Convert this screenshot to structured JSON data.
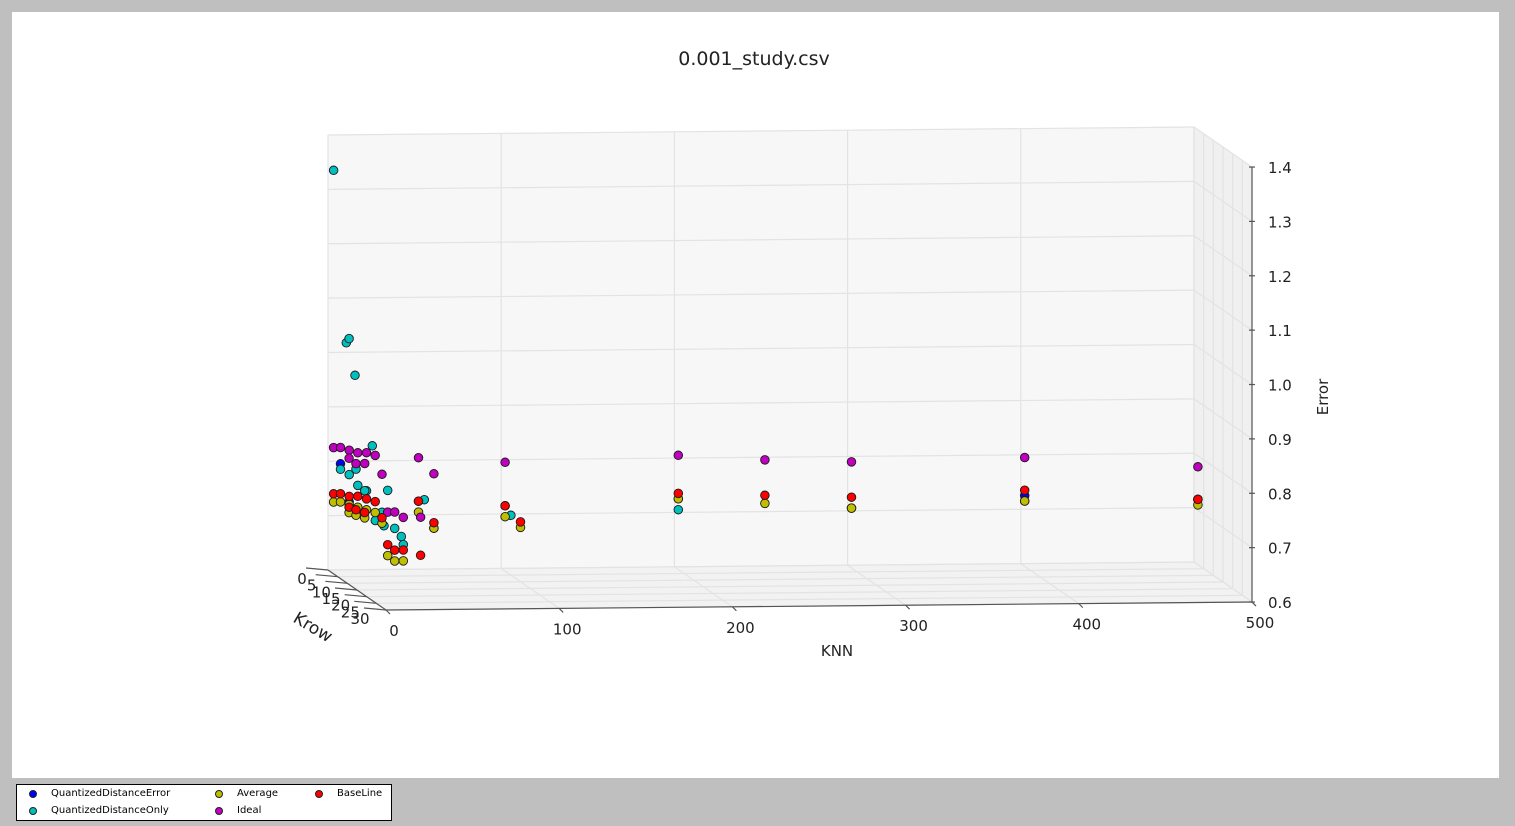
{
  "chart_data": {
    "type": "scatter",
    "title": "0.001_study.csv",
    "xlabel": "KNN",
    "ylabel": "Krow",
    "zlabel": "Error",
    "x_ticks": [
      "0",
      "100",
      "200",
      "300",
      "400",
      "500"
    ],
    "y_ticks": [
      "0",
      "5",
      "10",
      "15",
      "20",
      "25",
      "30"
    ],
    "z_ticks": [
      "0.6",
      "0.7",
      "0.8",
      "0.9",
      "1.0",
      "1.1",
      "1.2",
      "1.3",
      "1.4"
    ],
    "xlim": [
      0,
      500
    ],
    "ylim": [
      0,
      30
    ],
    "zlim": [
      0.6,
      1.4
    ],
    "grid": true,
    "legend_position": "bottom-left",
    "knn_values": [
      1,
      5,
      10,
      15,
      20,
      25,
      50,
      100,
      200,
      300,
      400,
      500
    ],
    "krow_values": [
      2,
      5,
      10,
      20,
      30
    ],
    "series": [
      {
        "name": "QuantizedDistanceError",
        "color": "#0000ff",
        "points": [
          [
            5,
            2,
            0.8
          ],
          [
            10,
            2,
            0.73
          ],
          [
            200,
            2,
            0.73
          ],
          [
            400,
            2,
            0.73
          ],
          [
            500,
            2,
            0.72
          ]
        ]
      },
      {
        "name": "QuantizedDistanceOnly",
        "color": "#00bfbf",
        "points": [
          [
            1,
            2,
            1.34
          ],
          [
            5,
            2,
            0.79
          ],
          [
            10,
            2,
            0.78
          ],
          [
            15,
            2,
            0.76
          ],
          [
            20,
            2,
            0.75
          ],
          [
            50,
            2,
            0.73
          ],
          [
            100,
            2,
            0.72
          ],
          [
            200,
            2,
            0.71
          ],
          [
            300,
            2,
            0.71
          ],
          [
            400,
            2,
            0.72
          ],
          [
            500,
            2,
            0.72
          ],
          [
            5,
            5,
            1.03
          ],
          [
            10,
            5,
            0.97
          ],
          [
            20,
            5,
            0.84
          ],
          [
            50,
            5,
            0.74
          ],
          [
            100,
            5,
            0.71
          ],
          [
            1,
            10,
            1.05
          ],
          [
            5,
            10,
            0.81
          ],
          [
            10,
            10,
            0.77
          ],
          [
            20,
            10,
            0.73
          ],
          [
            50,
            10,
            0.7
          ],
          [
            5,
            20,
            0.74
          ],
          [
            10,
            20,
            0.73
          ],
          [
            20,
            20,
            0.71
          ],
          [
            1,
            30,
            0.82
          ],
          [
            5,
            30,
            0.75
          ],
          [
            10,
            30,
            0.72
          ]
        ]
      },
      {
        "name": "Average",
        "color": "#bfbf00",
        "points": [
          [
            1,
            2,
            0.73
          ],
          [
            5,
            2,
            0.73
          ],
          [
            10,
            2,
            0.725
          ],
          [
            15,
            2,
            0.72
          ],
          [
            20,
            2,
            0.715
          ],
          [
            25,
            2,
            0.71
          ],
          [
            50,
            2,
            0.71
          ],
          [
            100,
            2,
            0.7
          ],
          [
            200,
            2,
            0.73
          ],
          [
            250,
            2,
            0.72
          ],
          [
            300,
            2,
            0.71
          ],
          [
            400,
            2,
            0.72
          ],
          [
            500,
            2,
            0.71
          ],
          [
            1,
            10,
            0.73
          ],
          [
            5,
            10,
            0.725
          ],
          [
            10,
            10,
            0.72
          ],
          [
            20,
            10,
            0.71
          ],
          [
            50,
            10,
            0.7
          ],
          [
            100,
            10,
            0.7
          ],
          [
            1,
            30,
            0.7
          ],
          [
            5,
            30,
            0.69
          ],
          [
            10,
            30,
            0.69
          ]
        ]
      },
      {
        "name": "Ideal",
        "color": "#bf00bf",
        "points": [
          [
            1,
            2,
            0.83
          ],
          [
            5,
            2,
            0.83
          ],
          [
            10,
            2,
            0.825
          ],
          [
            15,
            2,
            0.82
          ],
          [
            20,
            2,
            0.82
          ],
          [
            25,
            2,
            0.815
          ],
          [
            50,
            2,
            0.81
          ],
          [
            100,
            2,
            0.8
          ],
          [
            200,
            2,
            0.81
          ],
          [
            250,
            2,
            0.8
          ],
          [
            300,
            2,
            0.795
          ],
          [
            400,
            2,
            0.8
          ],
          [
            500,
            2,
            0.78
          ],
          [
            1,
            10,
            0.83
          ],
          [
            5,
            10,
            0.82
          ],
          [
            10,
            10,
            0.82
          ],
          [
            20,
            10,
            0.8
          ],
          [
            50,
            10,
            0.8
          ],
          [
            1,
            30,
            0.78
          ],
          [
            5,
            30,
            0.78
          ],
          [
            10,
            30,
            0.77
          ],
          [
            20,
            30,
            0.77
          ]
        ]
      },
      {
        "name": "BaseLine",
        "color": "#ff0000",
        "points": [
          [
            1,
            2,
            0.745
          ],
          [
            5,
            2,
            0.745
          ],
          [
            10,
            2,
            0.74
          ],
          [
            15,
            2,
            0.74
          ],
          [
            20,
            2,
            0.735
          ],
          [
            25,
            2,
            0.73
          ],
          [
            50,
            2,
            0.73
          ],
          [
            100,
            2,
            0.72
          ],
          [
            200,
            2,
            0.74
          ],
          [
            250,
            2,
            0.735
          ],
          [
            300,
            2,
            0.73
          ],
          [
            400,
            2,
            0.74
          ],
          [
            500,
            2,
            0.72
          ],
          [
            1,
            10,
            0.74
          ],
          [
            5,
            10,
            0.735
          ],
          [
            10,
            10,
            0.73
          ],
          [
            20,
            10,
            0.72
          ],
          [
            50,
            10,
            0.71
          ],
          [
            100,
            10,
            0.71
          ],
          [
            1,
            30,
            0.72
          ],
          [
            5,
            30,
            0.71
          ],
          [
            10,
            30,
            0.71
          ],
          [
            20,
            30,
            0.7
          ]
        ]
      }
    ]
  },
  "legend": {
    "items": [
      {
        "label": "QuantizedDistanceError",
        "color": "#0000ff"
      },
      {
        "label": "QuantizedDistanceOnly",
        "color": "#00bfbf"
      },
      {
        "label": "Average",
        "color": "#bfbf00"
      },
      {
        "label": "Ideal",
        "color": "#bf00bf"
      },
      {
        "label": "BaseLine",
        "color": "#ff0000"
      }
    ]
  }
}
